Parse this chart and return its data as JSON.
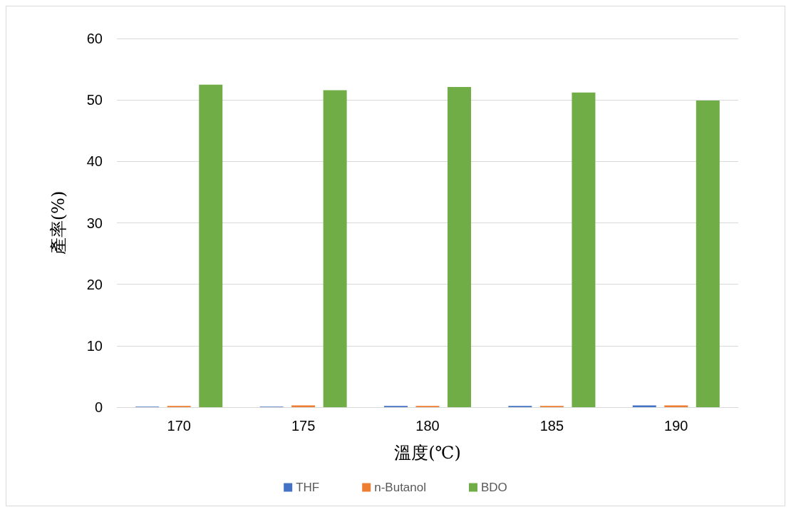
{
  "chart_data": {
    "type": "bar",
    "xlabel": "溫度(℃)",
    "ylabel": "產率(%)",
    "categories": [
      "170",
      "175",
      "180",
      "185",
      "190"
    ],
    "series": [
      {
        "name": "THF",
        "color": "#4472c4",
        "values": [
          0.1,
          0.1,
          0.2,
          0.2,
          0.3
        ]
      },
      {
        "name": "n-Butanol",
        "color": "#ed7d31",
        "values": [
          0.2,
          0.3,
          0.2,
          0.2,
          0.3
        ]
      },
      {
        "name": "BDO",
        "color": "#70ad47",
        "values": [
          52.5,
          51.6,
          52.1,
          51.2,
          49.9
        ]
      }
    ],
    "ylim": [
      0,
      60
    ],
    "yticks": [
      0,
      10,
      20,
      30,
      40,
      50,
      60
    ],
    "grid": "y",
    "legend": "bottom"
  }
}
